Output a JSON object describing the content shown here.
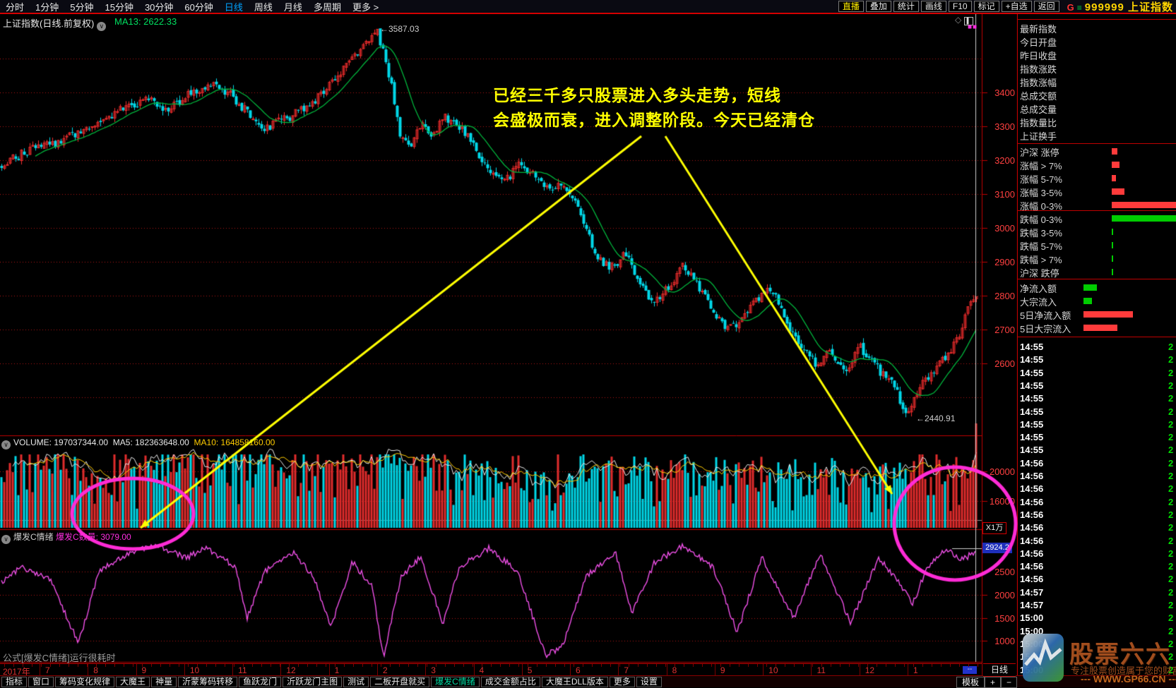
{
  "menubar": {
    "items": [
      "分时",
      "1分钟",
      "5分钟",
      "15分钟",
      "30分钟",
      "60分钟",
      "日线",
      "周线",
      "月线",
      "多周期",
      "更多 >"
    ],
    "active": "日线",
    "right_buttons": [
      "直播",
      "叠加",
      "统计",
      "画线",
      "F10",
      "标记",
      "+自选",
      "返回"
    ],
    "highlight_button": "直播",
    "code_g": "G",
    "code_eq": "≡",
    "code_text": "999999 上证指数"
  },
  "chart_header": {
    "title": "上证指数(日线.前复权)",
    "ma13": "MA13: 2622.33"
  },
  "main_chart": {
    "peak_label": "←3587.03",
    "low_label": "←2440.91",
    "annotation_line1": "已经三千多只股票进入多头走势，短线",
    "annotation_line2": "会盛极而衰，进入调整阶段。今天已经清仓",
    "y_axis": [
      "3400",
      "3300",
      "3200",
      "3100",
      "3000",
      "2900",
      "2800",
      "2700",
      "2600"
    ]
  },
  "volume_pane": {
    "volume_label": "VOLUME: 197037344.00",
    "ma5_label": "MA5: 182363648.00",
    "ma10_label": "MA10: 164858160.00",
    "y_axis": [
      "20000",
      "16000"
    ],
    "unit": "X1万"
  },
  "indicator_pane": {
    "name": "爆发C情绪",
    "count_label": "爆发C数量: 3079.00",
    "last_value": "2924.2",
    "y_axis": [
      "2500",
      "2000",
      "1500",
      "1000"
    ],
    "note": "公式[爆发C情绪]运行很耗时"
  },
  "sidebar": {
    "info_rows": [
      "最新指数",
      "今日开盘",
      "昨日收盘",
      "指数涨跌",
      "指数涨幅",
      "总成交额",
      "总成交量",
      "指数量比",
      "上证换手"
    ],
    "up_rows": [
      {
        "label": "沪深 涨停",
        "bar": 8,
        "color": "#ff3b3b"
      },
      {
        "label": "涨幅 > 7%",
        "bar": 11,
        "color": "#ff3b3b"
      },
      {
        "label": "涨幅 5-7%",
        "bar": 6,
        "color": "#ff3b3b"
      },
      {
        "label": "涨幅 3-5%",
        "bar": 18,
        "color": "#ff3b3b"
      },
      {
        "label": "涨幅 0-3%",
        "bar": 92,
        "color": "#ff3b3b"
      }
    ],
    "down_rows": [
      {
        "label": "跌幅 0-3%",
        "bar": 92,
        "color": "#00cc00"
      },
      {
        "label": "跌幅 3-5%",
        "bar": 2,
        "color": "#00cc00"
      },
      {
        "label": "跌幅 5-7%",
        "bar": 2,
        "color": "#00cc00"
      },
      {
        "label": "跌幅 > 7%",
        "bar": 2,
        "color": "#00cc00"
      },
      {
        "label": "沪深 跌停",
        "bar": 2,
        "color": "#00cc00"
      }
    ],
    "flow_rows": [
      {
        "label": "净流入额",
        "bar": 19,
        "color": "#00cc00"
      },
      {
        "label": "大宗流入",
        "bar": 12,
        "color": "#00cc00"
      },
      {
        "label": "5日净流入额",
        "bar": 70,
        "color": "#ff3b3b"
      },
      {
        "label": "5日大宗流入",
        "bar": 48,
        "color": "#ff3b3b"
      }
    ],
    "times": [
      "14:55",
      "14:55",
      "14:55",
      "14:55",
      "14:55",
      "14:55",
      "14:55",
      "14:55",
      "14:55",
      "14:56",
      "14:56",
      "14:56",
      "14:56",
      "14:56",
      "14:56",
      "14:56",
      "14:56",
      "14:56",
      "14:56",
      "14:57",
      "14:57",
      "15:00",
      "15:00",
      "15:00",
      "15:00",
      "15:00"
    ],
    "row_digit": "2"
  },
  "bottom_axis": {
    "year": "2017年",
    "months": [
      "7",
      "8",
      "9",
      "10",
      "11",
      "12",
      "1",
      "2",
      "3",
      "4",
      "5",
      "6",
      "7",
      "8",
      "9",
      "10",
      "11",
      "12",
      "1"
    ],
    "dash_button": "--",
    "period": "日线",
    "template": "模板",
    "plus": "+",
    "minus": "−"
  },
  "toolbar": {
    "items": [
      "指标",
      "窗口",
      "筹码变化规律",
      "大魔王",
      "神量",
      "沂蒙筹码转移",
      "鱼跃龙门",
      "沂跃龙门主图",
      "测试",
      "二板开盘就买",
      "爆发C情绪",
      "成交金额占比",
      "大魔王DLL版本",
      "更多",
      "设置"
    ],
    "active": "爆发C情绪"
  },
  "watermark": {
    "title": "股票六六",
    "subtitle": "专注股票创造属于您的财富",
    "url": "--- WWW.GP66.CN ---"
  },
  "chart_data": {
    "type": "candlestick",
    "title": "上证指数 日线 前复权 (2017-07 至 2019-01)",
    "price_axis": {
      "min": 2400,
      "max": 3620,
      "tick_labels": [
        3400,
        3300,
        3200,
        3100,
        3000,
        2900,
        2800,
        2700,
        2600
      ],
      "gridlines": [
        3500,
        3400,
        3300,
        3200,
        3100,
        3000,
        2900,
        2800,
        2700,
        2600,
        2500
      ]
    },
    "key_points": {
      "peak": 3587.03,
      "low": 2440.91,
      "ma13_last": 2622.33,
      "volume": 197037344.0,
      "volume_ma5": 182363648.0,
      "volume_ma10": 164858160.0,
      "indicator_count": 3079.0,
      "indicator_last": 2924.2
    },
    "volume_axis": [
      20000,
      16000
    ],
    "indicator_axis": [
      2500,
      2000,
      1500,
      1000
    ],
    "price_anchors": [
      [
        0,
        3190
      ],
      [
        0.03,
        3230
      ],
      [
        0.06,
        3255
      ],
      [
        0.09,
        3300
      ],
      [
        0.12,
        3345
      ],
      [
        0.15,
        3385
      ],
      [
        0.17,
        3350
      ],
      [
        0.19,
        3390
      ],
      [
        0.215,
        3420
      ],
      [
        0.235,
        3395
      ],
      [
        0.255,
        3330
      ],
      [
        0.27,
        3295
      ],
      [
        0.29,
        3320
      ],
      [
        0.315,
        3360
      ],
      [
        0.34,
        3430
      ],
      [
        0.36,
        3500
      ],
      [
        0.375,
        3555
      ],
      [
        0.385,
        3587
      ],
      [
        0.392,
        3510
      ],
      [
        0.4,
        3420
      ],
      [
        0.41,
        3260
      ],
      [
        0.42,
        3230
      ],
      [
        0.43,
        3310
      ],
      [
        0.44,
        3270
      ],
      [
        0.455,
        3325
      ],
      [
        0.47,
        3300
      ],
      [
        0.485,
        3240
      ],
      [
        0.5,
        3170
      ],
      [
        0.515,
        3130
      ],
      [
        0.53,
        3190
      ],
      [
        0.545,
        3160
      ],
      [
        0.56,
        3110
      ],
      [
        0.575,
        3125
      ],
      [
        0.59,
        3080
      ],
      [
        0.6,
        3000
      ],
      [
        0.61,
        2920
      ],
      [
        0.625,
        2880
      ],
      [
        0.64,
        2925
      ],
      [
        0.655,
        2830
      ],
      [
        0.67,
        2780
      ],
      [
        0.685,
        2830
      ],
      [
        0.7,
        2890
      ],
      [
        0.715,
        2830
      ],
      [
        0.73,
        2750
      ],
      [
        0.745,
        2705
      ],
      [
        0.76,
        2730
      ],
      [
        0.775,
        2790
      ],
      [
        0.79,
        2820
      ],
      [
        0.805,
        2720
      ],
      [
        0.82,
        2650
      ],
      [
        0.835,
        2600
      ],
      [
        0.85,
        2630
      ],
      [
        0.865,
        2570
      ],
      [
        0.88,
        2650
      ],
      [
        0.895,
        2600
      ],
      [
        0.905,
        2560
      ],
      [
        0.915,
        2540
      ],
      [
        0.922,
        2490
      ],
      [
        0.928,
        2445
      ],
      [
        0.935,
        2490
      ],
      [
        0.945,
        2540
      ],
      [
        0.955,
        2570
      ],
      [
        0.965,
        2605
      ],
      [
        0.975,
        2645
      ],
      [
        0.985,
        2705
      ],
      [
        0.993,
        2770
      ],
      [
        1,
        2805
      ]
    ],
    "indicator_anchors": [
      [
        0,
        2250
      ],
      [
        0.02,
        2600
      ],
      [
        0.05,
        2350
      ],
      [
        0.079,
        950
      ],
      [
        0.1,
        2500
      ],
      [
        0.13,
        2900
      ],
      [
        0.16,
        3050
      ],
      [
        0.19,
        2800
      ],
      [
        0.21,
        3000
      ],
      [
        0.24,
        2600
      ],
      [
        0.252,
        1500
      ],
      [
        0.27,
        2500
      ],
      [
        0.3,
        2900
      ],
      [
        0.32,
        2400
      ],
      [
        0.338,
        1300
      ],
      [
        0.36,
        2700
      ],
      [
        0.38,
        2200
      ],
      [
        0.392,
        650
      ],
      [
        0.41,
        2400
      ],
      [
        0.43,
        2800
      ],
      [
        0.453,
        1400
      ],
      [
        0.47,
        2600
      ],
      [
        0.5,
        3000
      ],
      [
        0.53,
        2500
      ],
      [
        0.558,
        700
      ],
      [
        0.576,
        900
      ],
      [
        0.6,
        2400
      ],
      [
        0.63,
        2900
      ],
      [
        0.647,
        1600
      ],
      [
        0.67,
        2700
      ],
      [
        0.7,
        3050
      ],
      [
        0.73,
        2600
      ],
      [
        0.755,
        1200
      ],
      [
        0.78,
        2800
      ],
      [
        0.813,
        1500
      ],
      [
        0.84,
        2900
      ],
      [
        0.871,
        1400
      ],
      [
        0.9,
        2800
      ],
      [
        0.92,
        2300
      ],
      [
        0.935,
        1800
      ],
      [
        0.95,
        2600
      ],
      [
        0.97,
        3000
      ],
      [
        0.985,
        2750
      ],
      [
        1,
        2924.2
      ]
    ]
  }
}
